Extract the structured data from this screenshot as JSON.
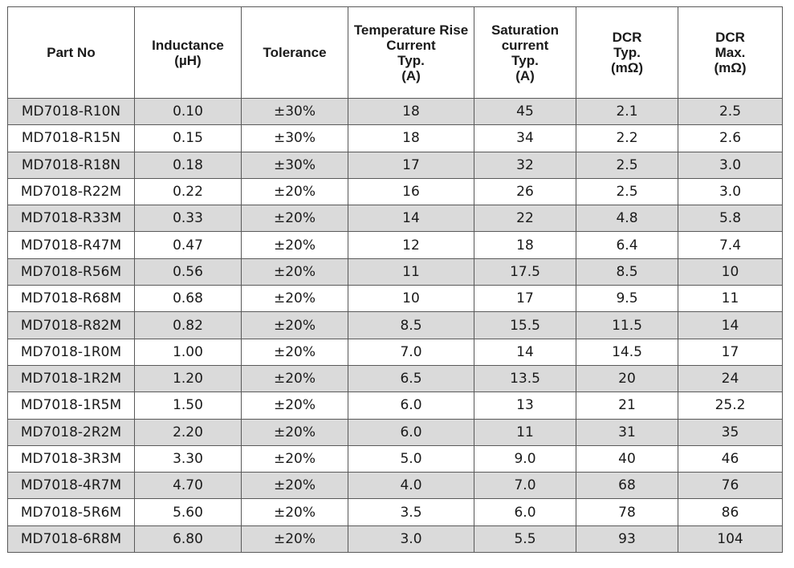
{
  "table": {
    "headers": [
      {
        "key": "part_no",
        "lines": [
          "Part No"
        ]
      },
      {
        "key": "inductance",
        "lines": [
          "Inductance",
          "(µH)"
        ]
      },
      {
        "key": "tolerance",
        "lines": [
          "Tolerance"
        ]
      },
      {
        "key": "temp_rise_current",
        "lines": [
          "Temperature Rise",
          "Current",
          "Typ.",
          "(A)"
        ]
      },
      {
        "key": "saturation_current",
        "lines": [
          "Saturation",
          "current",
          "Typ.",
          "(A)"
        ]
      },
      {
        "key": "dcr_typ",
        "lines": [
          "DCR",
          "Typ.",
          "(mΩ)"
        ]
      },
      {
        "key": "dcr_max",
        "lines": [
          "DCR",
          "Max.",
          "(mΩ)"
        ]
      }
    ],
    "rows": [
      [
        "MD7018-R10N",
        "0.10",
        "±30%",
        "18",
        "45",
        "2.1",
        "2.5"
      ],
      [
        "MD7018-R15N",
        "0.15",
        "±30%",
        "18",
        "34",
        "2.2",
        "2.6"
      ],
      [
        "MD7018-R18N",
        "0.18",
        "±30%",
        "17",
        "32",
        "2.5",
        "3.0"
      ],
      [
        "MD7018-R22M",
        "0.22",
        "±20%",
        "16",
        "26",
        "2.5",
        "3.0"
      ],
      [
        "MD7018-R33M",
        "0.33",
        "±20%",
        "14",
        "22",
        "4.8",
        "5.8"
      ],
      [
        "MD7018-R47M",
        "0.47",
        "±20%",
        "12",
        "18",
        "6.4",
        "7.4"
      ],
      [
        "MD7018-R56M",
        "0.56",
        "±20%",
        "11",
        "17.5",
        "8.5",
        "10"
      ],
      [
        "MD7018-R68M",
        "0.68",
        "±20%",
        "10",
        "17",
        "9.5",
        "11"
      ],
      [
        "MD7018-R82M",
        "0.82",
        "±20%",
        "8.5",
        "15.5",
        "11.5",
        "14"
      ],
      [
        "MD7018-1R0M",
        "1.00",
        "±20%",
        "7.0",
        "14",
        "14.5",
        "17"
      ],
      [
        "MD7018-1R2M",
        "1.20",
        "±20%",
        "6.5",
        "13.5",
        "20",
        "24"
      ],
      [
        "MD7018-1R5M",
        "1.50",
        "±20%",
        "6.0",
        "13",
        "21",
        "25.2"
      ],
      [
        "MD7018-2R2M",
        "2.20",
        "±20%",
        "6.0",
        "11",
        "31",
        "35"
      ],
      [
        "MD7018-3R3M",
        "3.30",
        "±20%",
        "5.0",
        "9.0",
        "40",
        "46"
      ],
      [
        "MD7018-4R7M",
        "4.70",
        "±20%",
        "4.0",
        "7.0",
        "68",
        "76"
      ],
      [
        "MD7018-5R6M",
        "5.60",
        "±20%",
        "3.5",
        "6.0",
        "78",
        "86"
      ],
      [
        "MD7018-6R8M",
        "6.80",
        "±20%",
        "3.0",
        "5.5",
        "93",
        "104"
      ]
    ],
    "colors": {
      "shaded_row": "#dadada",
      "plain_row": "#ffffff",
      "border": "#595959",
      "text": "#1a1a1a"
    }
  }
}
